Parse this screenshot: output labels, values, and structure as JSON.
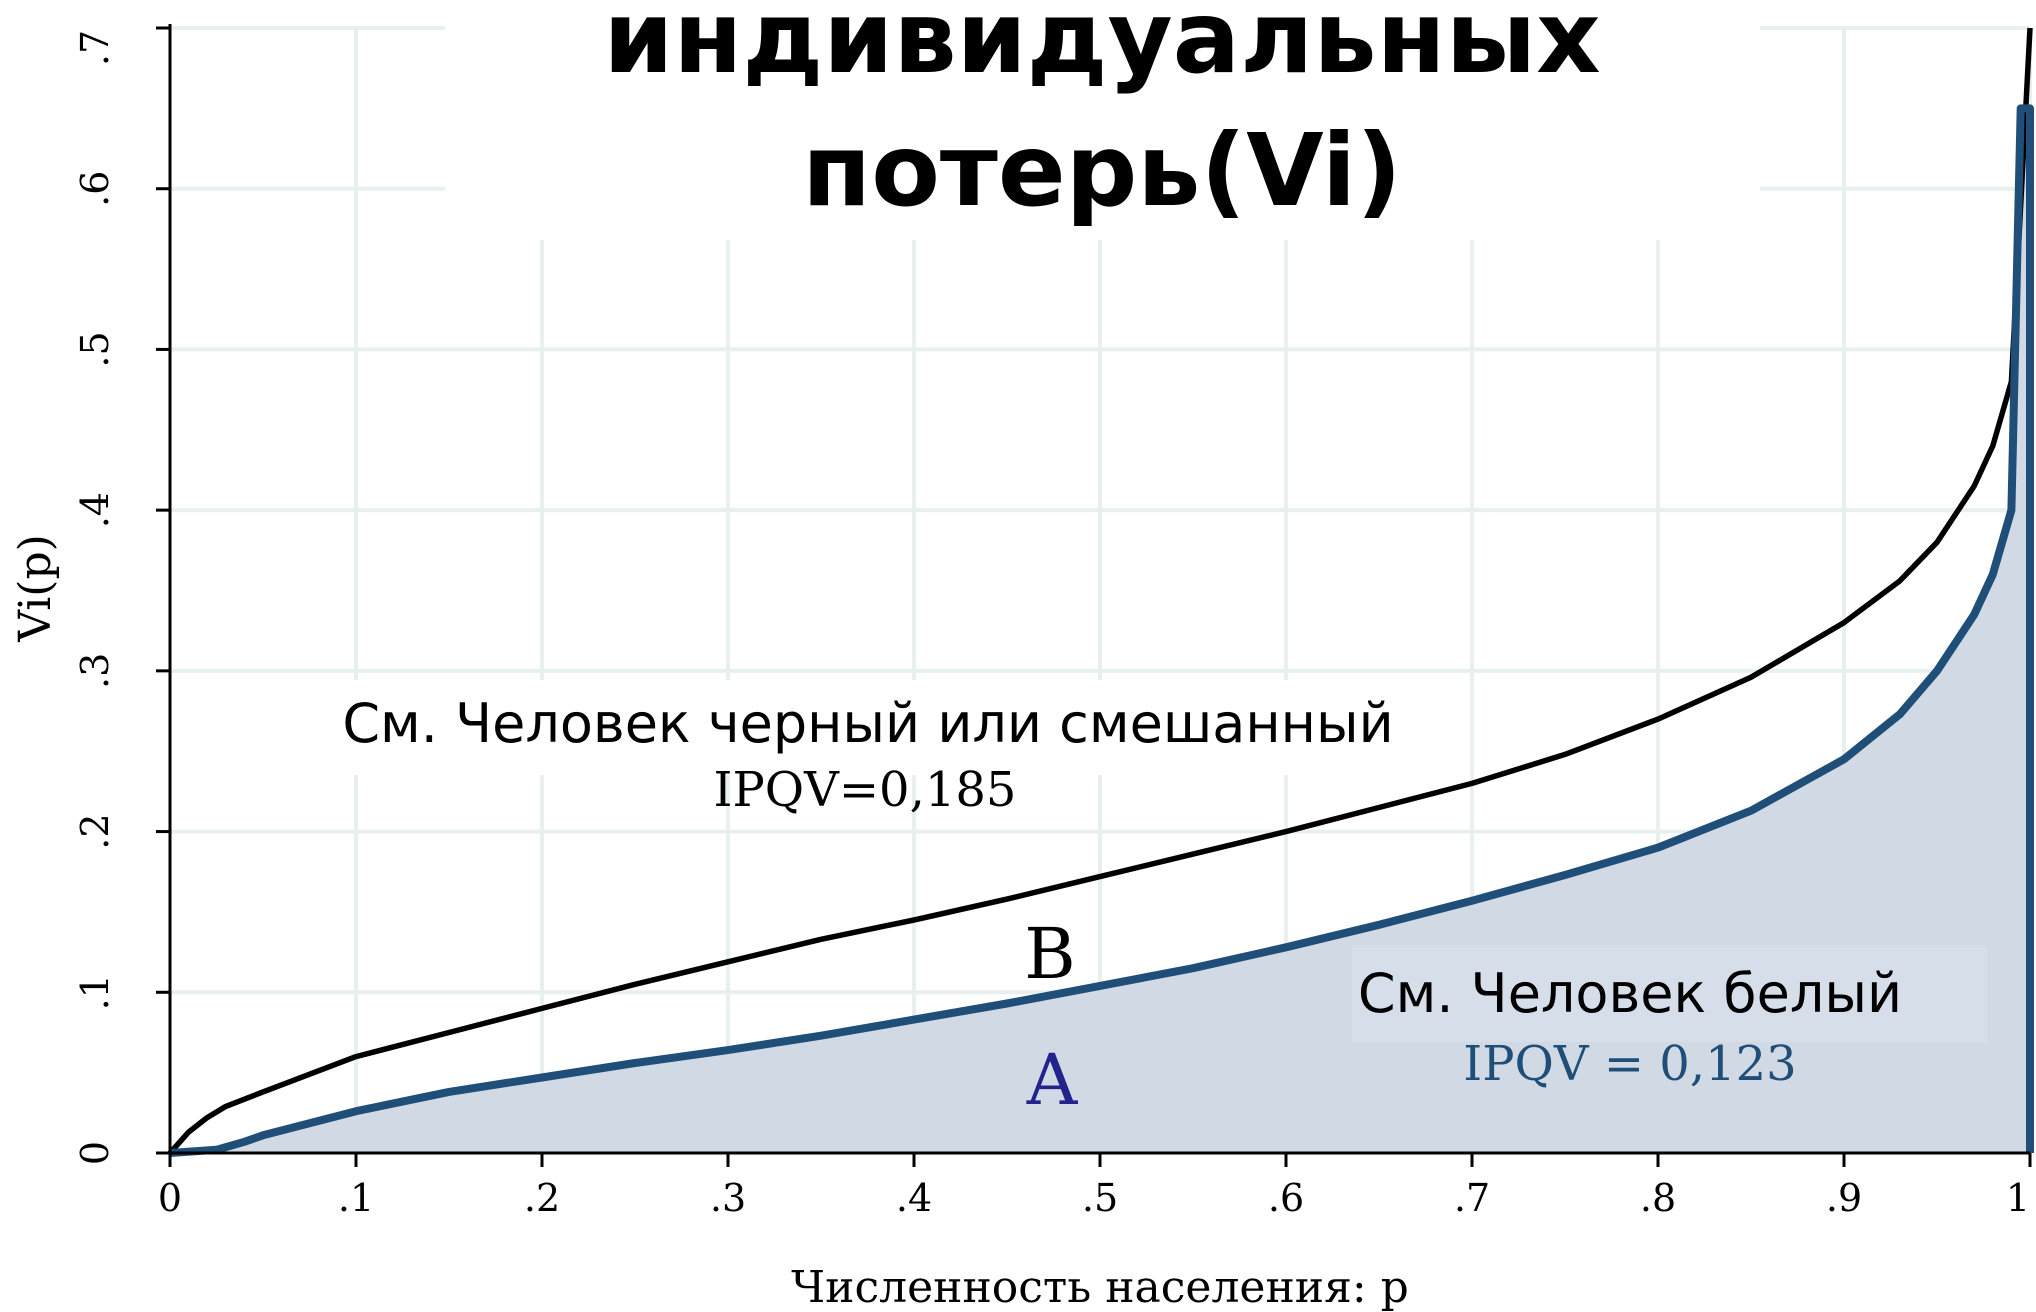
{
  "title_lines": [
    "индивидуальных",
    "потерь(Vi)"
  ],
  "chart_data": {
    "type": "area",
    "xlabel": "Численность населения: p",
    "ylabel": "Vi(p)",
    "xlim": [
      0,
      1
    ],
    "ylim": [
      0,
      0.7
    ],
    "x_ticks": [
      {
        "value": 0,
        "label": "0"
      },
      {
        "value": 0.1,
        "label": ".1"
      },
      {
        "value": 0.2,
        "label": ".2"
      },
      {
        "value": 0.3,
        "label": ".3"
      },
      {
        "value": 0.4,
        "label": ".4"
      },
      {
        "value": 0.5,
        "label": ".5"
      },
      {
        "value": 0.6,
        "label": ".6"
      },
      {
        "value": 0.7,
        "label": ".7"
      },
      {
        "value": 0.8,
        "label": ".8"
      },
      {
        "value": 0.9,
        "label": ".9"
      },
      {
        "value": 1,
        "label": "1"
      }
    ],
    "y_ticks": [
      {
        "value": 0,
        "label": "0"
      },
      {
        "value": 0.1,
        "label": ".1"
      },
      {
        "value": 0.2,
        "label": ".2"
      },
      {
        "value": 0.3,
        "label": ".3"
      },
      {
        "value": 0.4,
        "label": ".4"
      },
      {
        "value": 0.5,
        "label": ".5"
      },
      {
        "value": 0.6,
        "label": ".6"
      },
      {
        "value": 0.7,
        "label": ".7"
      }
    ],
    "grid": true,
    "series": [
      {
        "name": "См. Человек черный или смешанный",
        "color": "#000000",
        "fill": false,
        "x": [
          0,
          0.01,
          0.02,
          0.03,
          0.05,
          0.1,
          0.15,
          0.2,
          0.25,
          0.3,
          0.35,
          0.4,
          0.45,
          0.5,
          0.55,
          0.6,
          0.65,
          0.7,
          0.75,
          0.8,
          0.85,
          0.9,
          0.93,
          0.95,
          0.97,
          0.98,
          0.99,
          1.0
        ],
        "y": [
          0,
          0.013,
          0.022,
          0.029,
          0.038,
          0.06,
          0.075,
          0.09,
          0.105,
          0.119,
          0.133,
          0.145,
          0.158,
          0.172,
          0.186,
          0.2,
          0.215,
          0.23,
          0.248,
          0.27,
          0.296,
          0.33,
          0.356,
          0.38,
          0.415,
          0.44,
          0.48,
          0.7
        ]
      },
      {
        "name": "См. Человек белый",
        "color": "#1f4e79",
        "fill": true,
        "fill_color": "#d1dae4",
        "x": [
          0,
          0.025,
          0.04,
          0.05,
          0.1,
          0.15,
          0.2,
          0.25,
          0.3,
          0.35,
          0.4,
          0.45,
          0.5,
          0.55,
          0.6,
          0.65,
          0.7,
          0.75,
          0.8,
          0.85,
          0.9,
          0.93,
          0.95,
          0.97,
          0.98,
          0.99,
          0.995,
          1.0,
          1.0
        ],
        "y": [
          0,
          0.002,
          0.007,
          0.011,
          0.026,
          0.038,
          0.047,
          0.056,
          0.064,
          0.073,
          0.083,
          0.093,
          0.104,
          0.115,
          0.128,
          0.142,
          0.157,
          0.173,
          0.19,
          0.213,
          0.245,
          0.273,
          0.3,
          0.335,
          0.36,
          0.4,
          0.65,
          0.65,
          0
        ]
      }
    ],
    "annotations": {
      "black_label": "См. Человек черный или смешанный",
      "black_ipqv": "IPQV=0,185",
      "white_label": "См. Человек белый",
      "white_ipqv": "IPQV = 0,123",
      "region_b": "B",
      "region_a": "A"
    },
    "colors": {
      "grid": "#e8f0ef",
      "white_ipqv_text": "#1f4e79",
      "region_a_text": "#22238c",
      "legend_box": "#d6deea"
    }
  }
}
